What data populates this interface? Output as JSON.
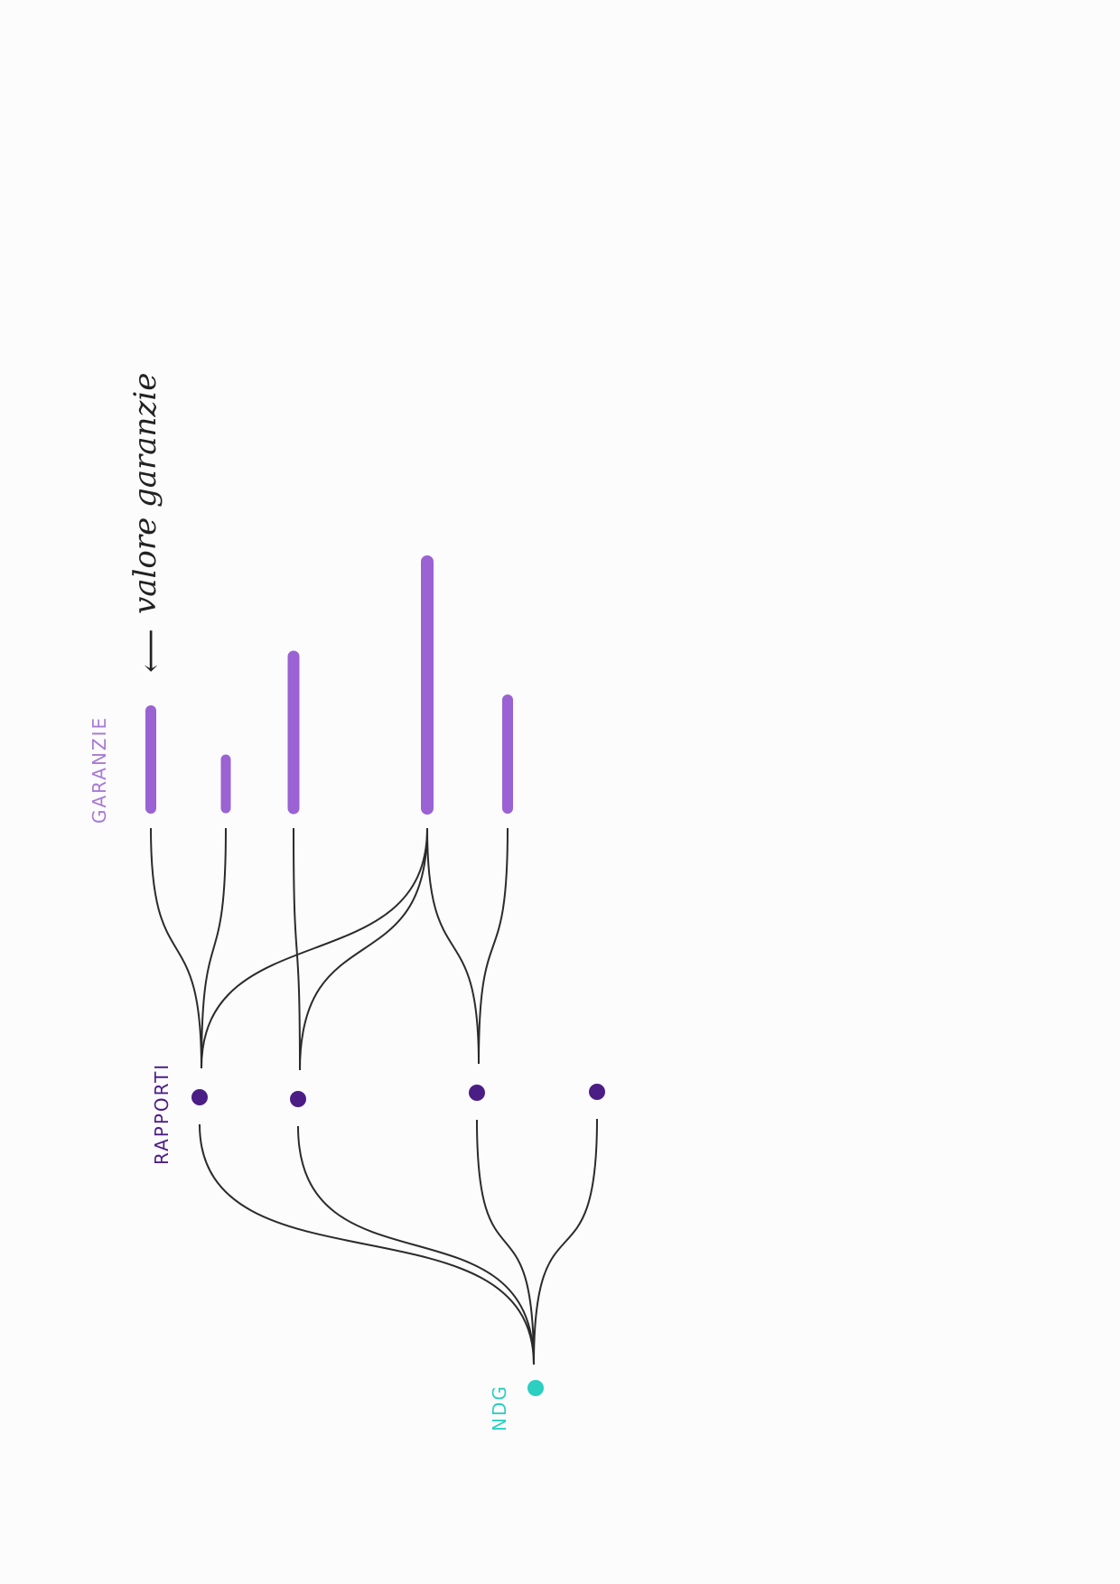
{
  "labels": {
    "garanzie": "GARANZIE",
    "rapporti": "RAPPORTI",
    "ndg": "NDG",
    "annotation": "valore garanzie",
    "arrow": "⟵"
  },
  "colors": {
    "garanzie": "#a77ad6",
    "bar": "#9a62d2",
    "rapporti": "#4b1e86",
    "ndg": "#2ccfc0",
    "line": "#2b2b2b",
    "ink": "#222222"
  },
  "diagram": {
    "garanzie": [
      {
        "id": "g1",
        "value": 0.36
      },
      {
        "id": "g2",
        "value": 0.18
      },
      {
        "id": "g3",
        "value": 0.56
      },
      {
        "id": "g4",
        "value": 0.91
      },
      {
        "id": "g5",
        "value": 0.4
      }
    ],
    "rapporti": [
      "r1",
      "r2",
      "r3",
      "r4"
    ],
    "ndg": [
      "n1"
    ],
    "links_garanzie_rapporti": [
      [
        "g1",
        "r1"
      ],
      [
        "g2",
        "r1"
      ],
      [
        "g4",
        "r1"
      ],
      [
        "g3",
        "r2"
      ],
      [
        "g4",
        "r2"
      ],
      [
        "g4",
        "r3"
      ],
      [
        "g5",
        "r3"
      ]
    ],
    "links_rapporti_ndg": [
      [
        "r1",
        "n1"
      ],
      [
        "r2",
        "n1"
      ],
      [
        "r3",
        "n1"
      ],
      [
        "r4",
        "n1"
      ]
    ]
  }
}
